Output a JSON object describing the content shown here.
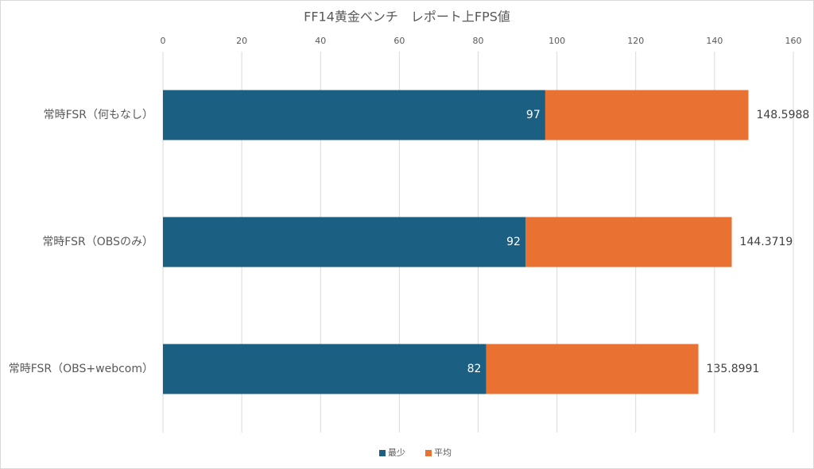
{
  "chart_data": {
    "type": "bar",
    "orientation": "horizontal",
    "barmode": "overlay",
    "title": "FF14黄金ベンチ　レポート上FPS値",
    "categories": [
      "常時FSR（何もなし）",
      "常時FSR（OBSのみ）",
      "常時FSR（OBS+webcom）"
    ],
    "series": [
      {
        "name": "最少",
        "color": "#1b5f82",
        "values": [
          97,
          92,
          82
        ],
        "label_position": "inside_end",
        "label_color": "#ffffff"
      },
      {
        "name": "平均",
        "color": "#e97132",
        "values": [
          148.5988,
          144.3719,
          135.8991
        ],
        "label_position": "outside_end",
        "label_color": "#404040"
      }
    ],
    "xlim": [
      0,
      160
    ],
    "xticks": [
      0,
      20,
      40,
      60,
      80,
      100,
      120,
      140,
      160
    ],
    "grid": true,
    "legend": "bottom"
  }
}
